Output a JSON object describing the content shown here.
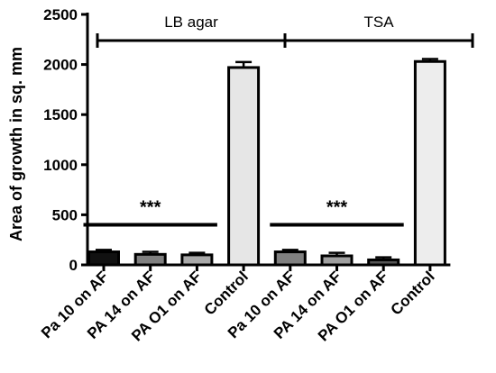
{
  "chart_data": {
    "type": "bar",
    "ylabel": "Area of growth in sq. mm",
    "xlabel": "",
    "ylim": [
      0,
      2500
    ],
    "yticks": [
      0,
      500,
      1000,
      1500,
      2000,
      2500
    ],
    "categories": [
      "Pa 10 on AF",
      "PA 14 on AF",
      "PA O1 on AF",
      "Control",
      "Pa 10 on AF",
      "PA 14 on AF",
      "PA O1 on AF",
      "Control"
    ],
    "values": [
      130,
      105,
      100,
      1970,
      130,
      90,
      50,
      2030
    ],
    "errors": [
      20,
      25,
      20,
      55,
      20,
      30,
      25,
      25
    ],
    "bar_colors": [
      "#111111",
      "#808080",
      "#a9a9a9",
      "#e6e6e6",
      "#808080",
      "#a0a0a0",
      "#555555",
      "#ededed"
    ],
    "groups": [
      {
        "label": "LB agar",
        "from": 0,
        "to": 3
      },
      {
        "label": "TSA",
        "from": 4,
        "to": 7
      }
    ],
    "significance": [
      {
        "label": "***",
        "from": 0,
        "to": 2,
        "y": 400
      },
      {
        "label": "***",
        "from": 4,
        "to": 6,
        "y": 400
      }
    ],
    "grid": false
  }
}
